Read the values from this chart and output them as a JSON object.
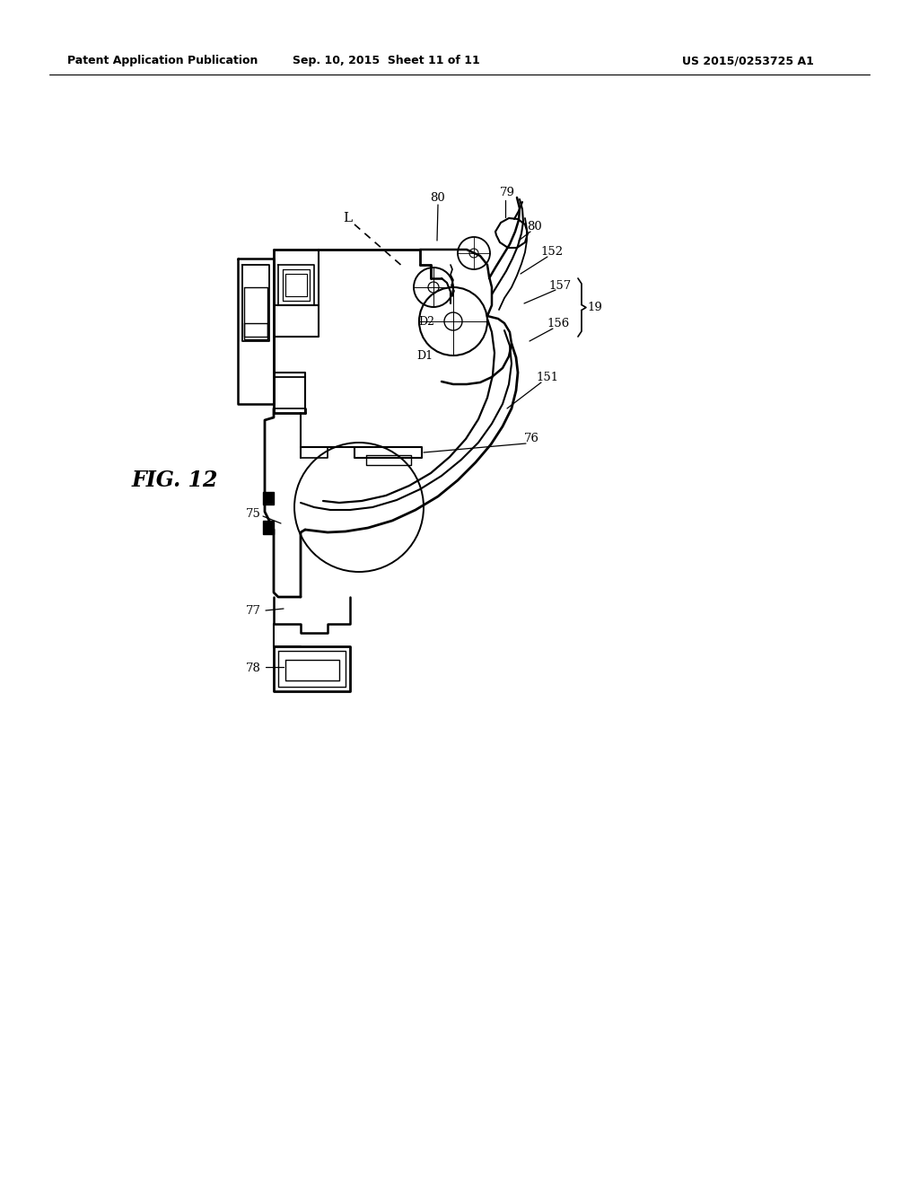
{
  "background_color": "#ffffff",
  "line_color": "#000000",
  "header_left": "Patent Application Publication",
  "header_mid": "Sep. 10, 2015  Sheet 11 of 11",
  "header_right": "US 2015/0253725 A1",
  "fig_label": "FIG. 12"
}
